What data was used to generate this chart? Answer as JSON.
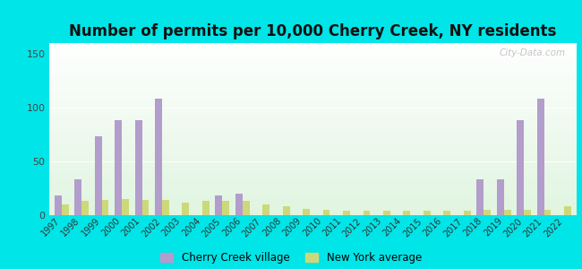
{
  "title": "Number of permits per 10,000 Cherry Creek, NY residents",
  "years": [
    1997,
    1998,
    1999,
    2000,
    2001,
    2002,
    2003,
    2004,
    2005,
    2006,
    2007,
    2008,
    2009,
    2010,
    2011,
    2012,
    2013,
    2014,
    2015,
    2016,
    2017,
    2018,
    2019,
    2020,
    2021,
    2022
  ],
  "cherry_creek": [
    18,
    33,
    73,
    88,
    88,
    108,
    0,
    0,
    18,
    20,
    0,
    0,
    0,
    0,
    0,
    0,
    0,
    0,
    0,
    0,
    0,
    33,
    33,
    88,
    108,
    0
  ],
  "ny_average": [
    10,
    13,
    14,
    15,
    14,
    14,
    12,
    13,
    13,
    13,
    10,
    8,
    6,
    5,
    4,
    4,
    4,
    4,
    4,
    4,
    4,
    5,
    5,
    5,
    5,
    8
  ],
  "cherry_color": "#b39dcc",
  "ny_color": "#ccd97a",
  "background_outer": "#00e5e8",
  "bg_top": "#f5fdf0",
  "bg_bottom": "#d8f0d0",
  "ylim": [
    0,
    160
  ],
  "yticks": [
    0,
    50,
    100,
    150
  ],
  "legend_cherry": "Cherry Creek village",
  "legend_ny": "New York average",
  "watermark": "City-Data.com"
}
